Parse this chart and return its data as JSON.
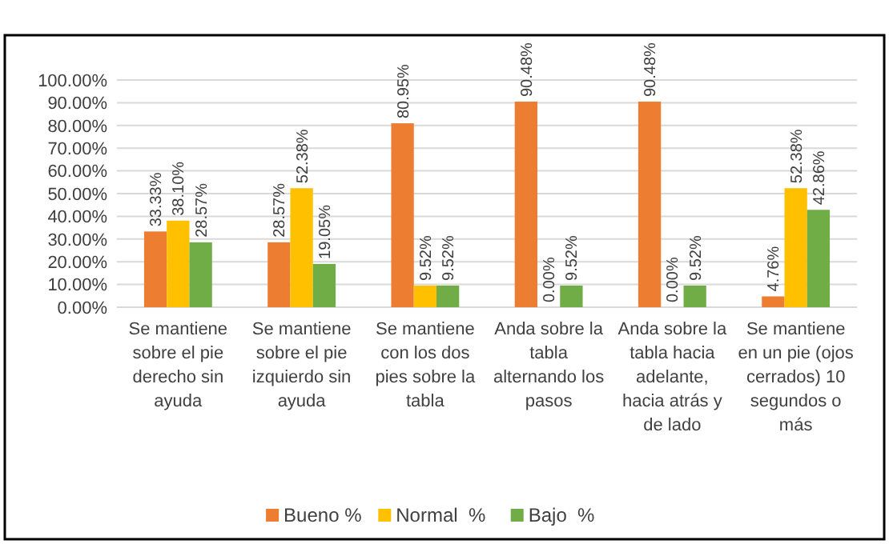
{
  "chart_data": {
    "type": "bar",
    "categories": [
      "Se mantiene sobre el pie derecho sin ayuda",
      "Se mantiene sobre el pie izquierdo sin ayuda",
      "Se mantiene con los dos pies sobre la tabla",
      "Anda sobre la tabla alternando los pasos",
      "Anda sobre la tabla hacia adelante, hacia atrás y de lado",
      "Se mantiene en un pie (ojos cerrados) 10 segundos o más"
    ],
    "series": [
      {
        "name": "Bueno %",
        "color": "#ed7d31",
        "values": [
          33.33,
          28.57,
          80.95,
          90.48,
          90.48,
          4.76
        ],
        "value_labels": [
          "33.33%",
          "28.57%",
          "80.95%",
          "90.48%",
          "90.48%",
          "4.76%"
        ]
      },
      {
        "name": "Normal  %",
        "color": "#ffc000",
        "values": [
          38.1,
          52.38,
          9.52,
          0,
          0,
          52.38
        ],
        "value_labels": [
          "38.10%",
          "52.38%",
          "9.52%",
          "0.00%",
          "0.00%",
          "52.38%"
        ]
      },
      {
        "name": "Bajo  %",
        "color": "#70ad47",
        "values": [
          28.57,
          19.05,
          9.52,
          9.52,
          9.52,
          42.86
        ],
        "value_labels": [
          "28.57%",
          "19.05%",
          "9.52%",
          "9.52%",
          "9.52%",
          "42.86%"
        ]
      }
    ],
    "ylim": [
      0,
      100
    ],
    "yticks": [
      {
        "value": 0,
        "label": "0.00%"
      },
      {
        "value": 10,
        "label": "10.00%"
      },
      {
        "value": 20,
        "label": "20.00%"
      },
      {
        "value": 30,
        "label": "30.00%"
      },
      {
        "value": 40,
        "label": "40.00%"
      },
      {
        "value": 50,
        "label": "50.00%"
      },
      {
        "value": 60,
        "label": "60.00%"
      },
      {
        "value": 70,
        "label": "70.00%"
      },
      {
        "value": 80,
        "label": "80.00%"
      },
      {
        "value": 90,
        "label": "90.00%"
      },
      {
        "value": 100,
        "label": "100.00%"
      }
    ],
    "grid": "y",
    "legend": "bottom"
  }
}
